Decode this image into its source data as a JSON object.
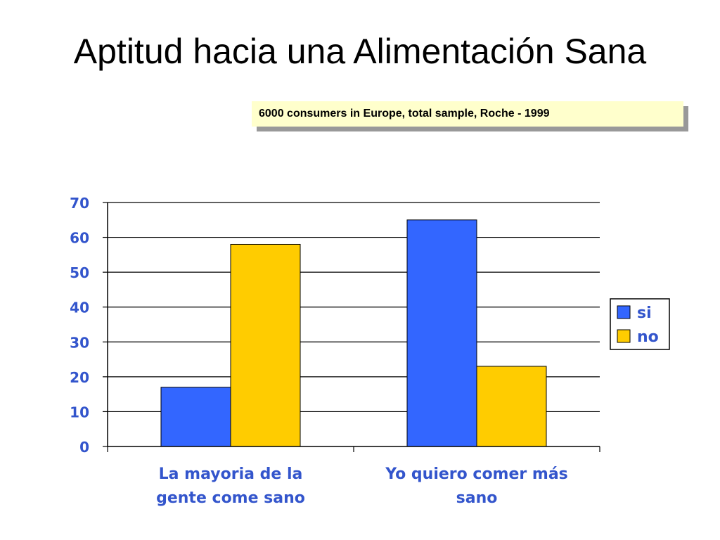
{
  "slide": {
    "title": "Aptitud hacia una Alimentación Sana",
    "source_note": "6000 consumers in Europe, total sample, Roche - 1999"
  },
  "colors": {
    "si": "#3366ff",
    "no": "#ffcc00",
    "axis_text": "#3355cc",
    "note_background": "#ffffcc"
  },
  "chart_data": {
    "type": "bar",
    "title": "",
    "xlabel": "",
    "ylabel": "",
    "categories": [
      [
        "La mayoria de la",
        "gente come sano"
      ],
      [
        "Yo quiero comer más",
        "sano"
      ]
    ],
    "series": [
      {
        "name": "si",
        "values": [
          17,
          65
        ]
      },
      {
        "name": "no",
        "values": [
          58,
          23
        ]
      }
    ],
    "ylim": [
      0,
      70
    ],
    "yticks": [
      0,
      10,
      20,
      30,
      40,
      50,
      60,
      70
    ],
    "grid": true,
    "legend_position": "right"
  }
}
